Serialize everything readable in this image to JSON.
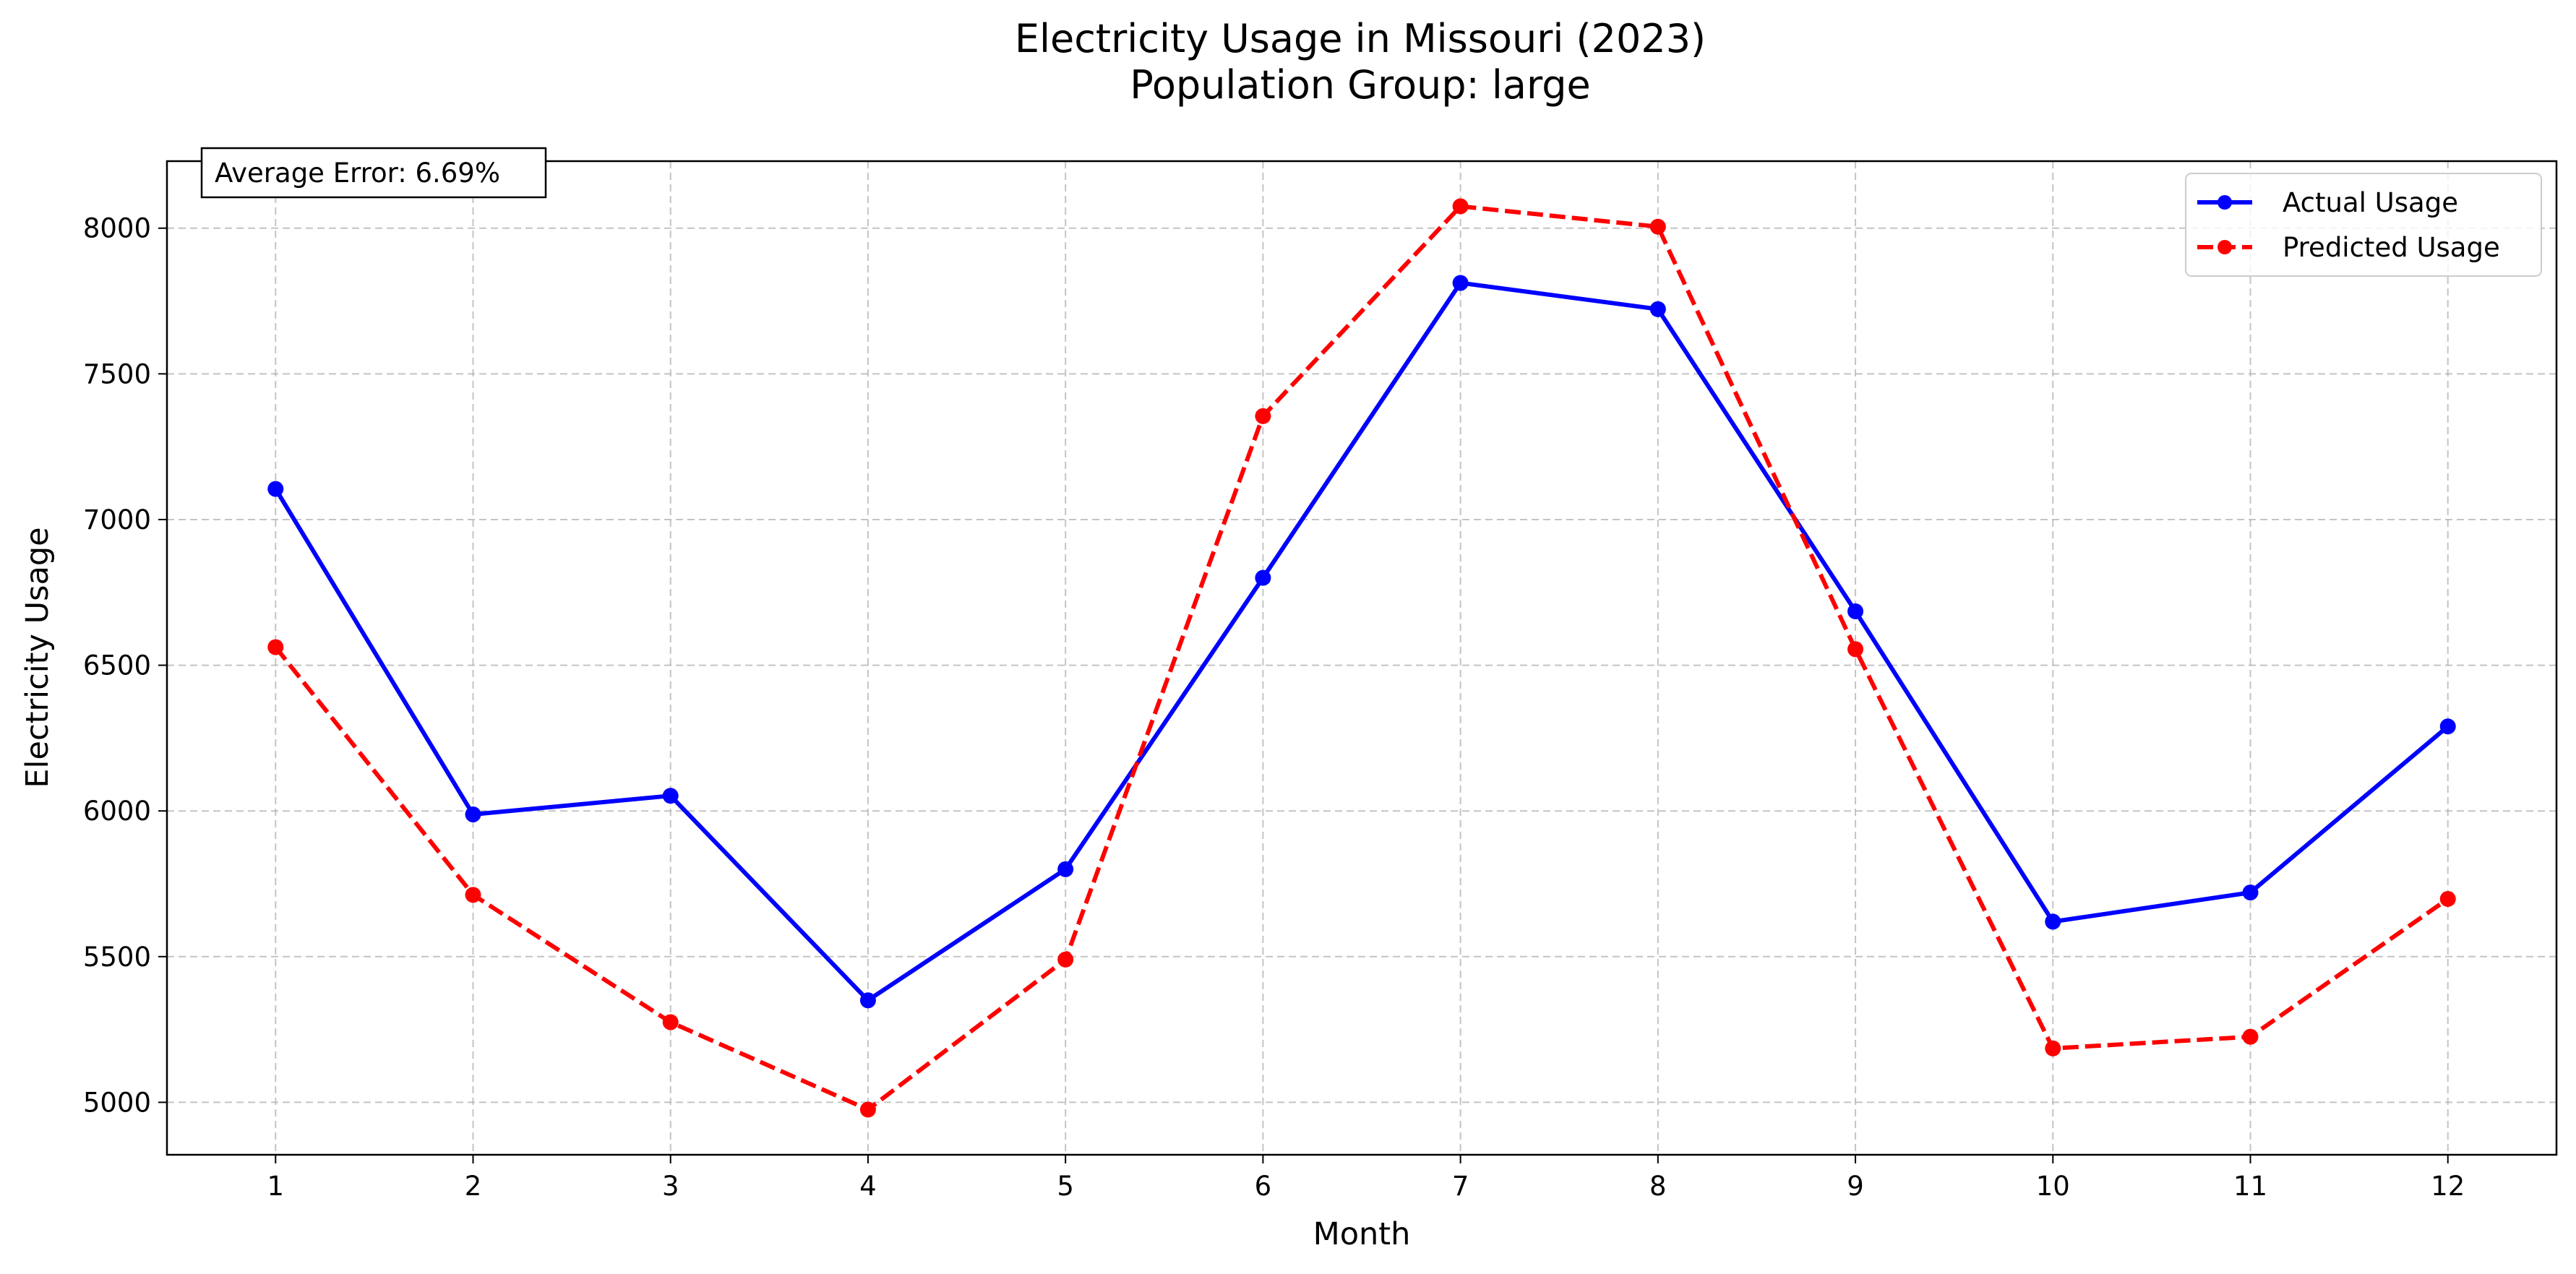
{
  "chart_data": {
    "type": "line",
    "title": "Electricity Usage in Missouri (2023)",
    "subtitle": "Population Group: large",
    "xlabel": "Month",
    "ylabel": "Electricity Usage",
    "x": [
      1,
      2,
      3,
      4,
      5,
      6,
      7,
      8,
      9,
      10,
      11,
      12
    ],
    "xlim": [
      0.45,
      12.55
    ],
    "ylim": [
      4820,
      8230
    ],
    "yticks": [
      5000,
      5500,
      6000,
      6500,
      7000,
      7500,
      8000
    ],
    "grid": true,
    "legend_position": "top-right",
    "annotation": "Average Error: 6.69%",
    "series": [
      {
        "name": "Actual Usage",
        "color": "#0000ff",
        "line_style": "solid",
        "marker": "circle",
        "values": [
          7105,
          5988,
          6052,
          5350,
          5800,
          6800,
          7812,
          7722,
          6685,
          5620,
          5720,
          6290
        ]
      },
      {
        "name": "Predicted Usage",
        "color": "#ff0000",
        "line_style": "dashed",
        "marker": "circle",
        "values": [
          6562,
          5712,
          5275,
          4975,
          5490,
          7355,
          8075,
          8005,
          6555,
          5185,
          5225,
          5698
        ]
      }
    ]
  }
}
